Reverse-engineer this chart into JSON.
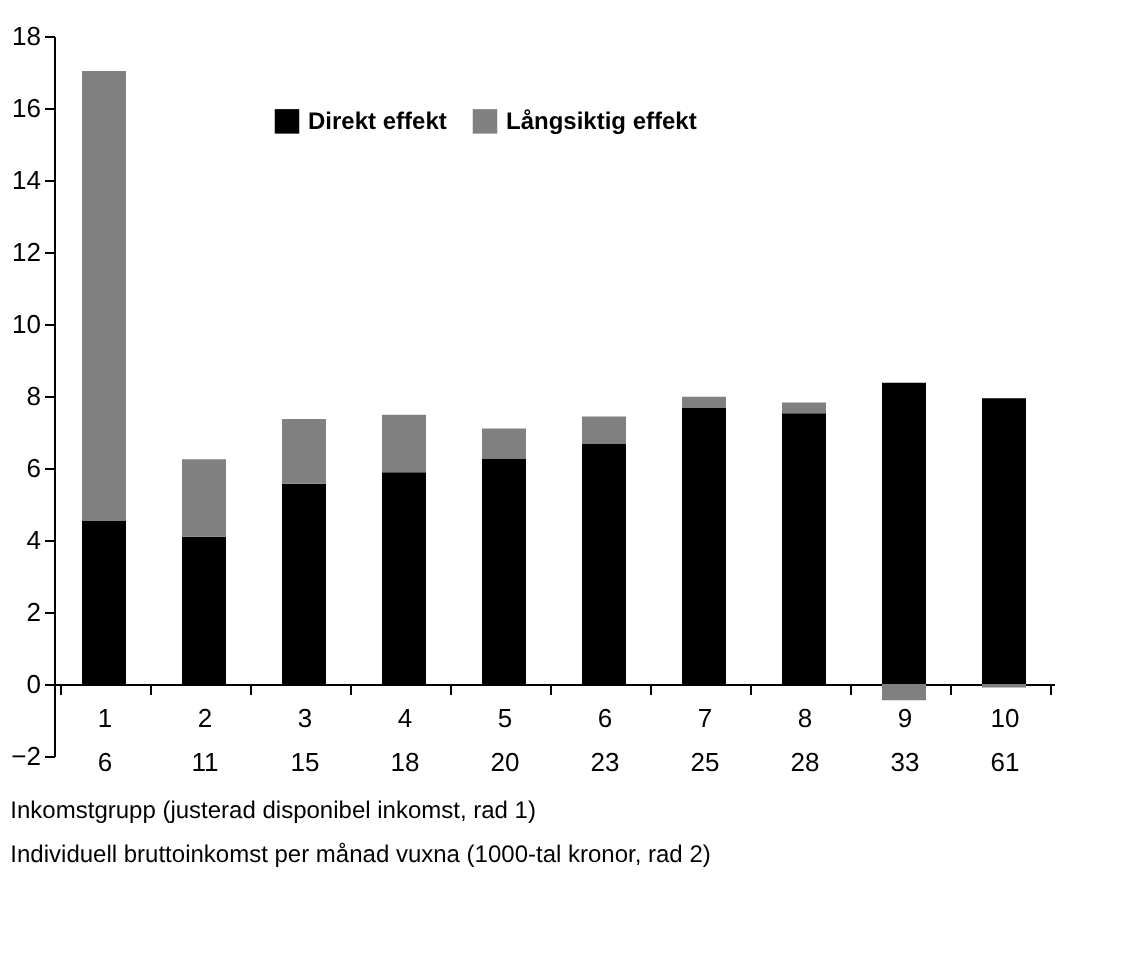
{
  "chart_data": {
    "type": "bar",
    "stacked": true,
    "categories": [
      "1\n6",
      "2\n11",
      "3\n15",
      "4\n18",
      "5\n20",
      "6\n23",
      "7\n25",
      "8\n28",
      "9\n33",
      "10\n61"
    ],
    "series": [
      {
        "name": "Direkt effekt",
        "color": "#000000",
        "values": [
          4.53,
          4.09,
          5.56,
          5.88,
          6.25,
          6.68,
          7.68,
          7.52,
          8.37,
          7.94
        ]
      },
      {
        "name": "Långsiktig effekt",
        "color": "#808080",
        "values": [
          12.5,
          2.15,
          1.8,
          1.6,
          0.85,
          0.75,
          0.3,
          0.3,
          -0.45,
          -0.1
        ]
      }
    ],
    "ylim": [
      -2,
      18
    ],
    "yticks": [
      -2,
      0,
      2,
      4,
      6,
      8,
      10,
      12,
      14,
      16,
      18
    ],
    "grid": false,
    "legend": "top",
    "annotations": [
      "Inkomstgrupp (justerad disponibel inkomst, rad 1)",
      "Individuell bruttoinkomst per månad vuxna (1000-tal kronor, rad 2)"
    ]
  }
}
